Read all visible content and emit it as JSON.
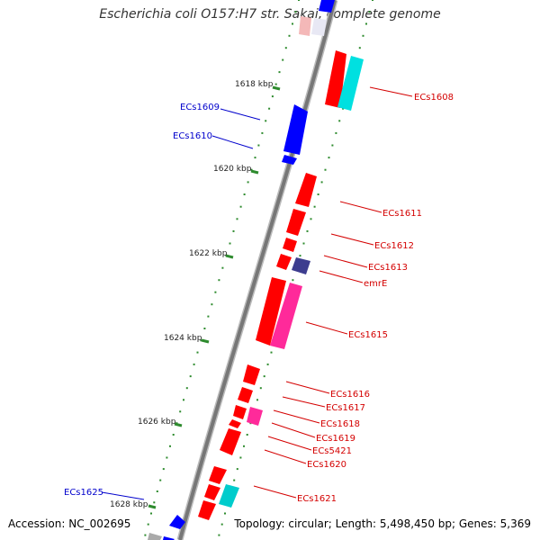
{
  "title": "Escherichia coli O157:H7 str. Sakai, complete genome",
  "footer": {
    "accession": "Accession: NC_002695",
    "summary": "Topology: circular; Length: 5,498,450 bp; Genes: 5,369"
  },
  "colors": {
    "backbone": "#888888",
    "tick": "#2e8b2e",
    "label_red": "#d40000",
    "label_blue": "#0000cc",
    "gene_red": "#ff0000",
    "gene_blue": "#0000ff",
    "gene_cyan": "#00cccc",
    "gene_pink": "#ff2a9a",
    "gene_navy": "#3d3d8f",
    "gene_gray": "#aaaaaa"
  },
  "scale_labels": [
    "1618 kbp",
    "1620 kbp",
    "1622 kbp",
    "1624 kbp",
    "1626 kbp",
    "1628 kbp"
  ],
  "gene_labels_right": [
    "ECs1608",
    "ECs1611",
    "ECs1612",
    "ECs1613",
    "emrE",
    "ECs1615",
    "ECs1616",
    "ECs1617",
    "ECs1618",
    "ECs1619",
    "ECs5421",
    "ECs1620",
    "ECs1621"
  ],
  "gene_labels_left": [
    "ECs1609",
    "ECs1610",
    "ECs1625"
  ]
}
